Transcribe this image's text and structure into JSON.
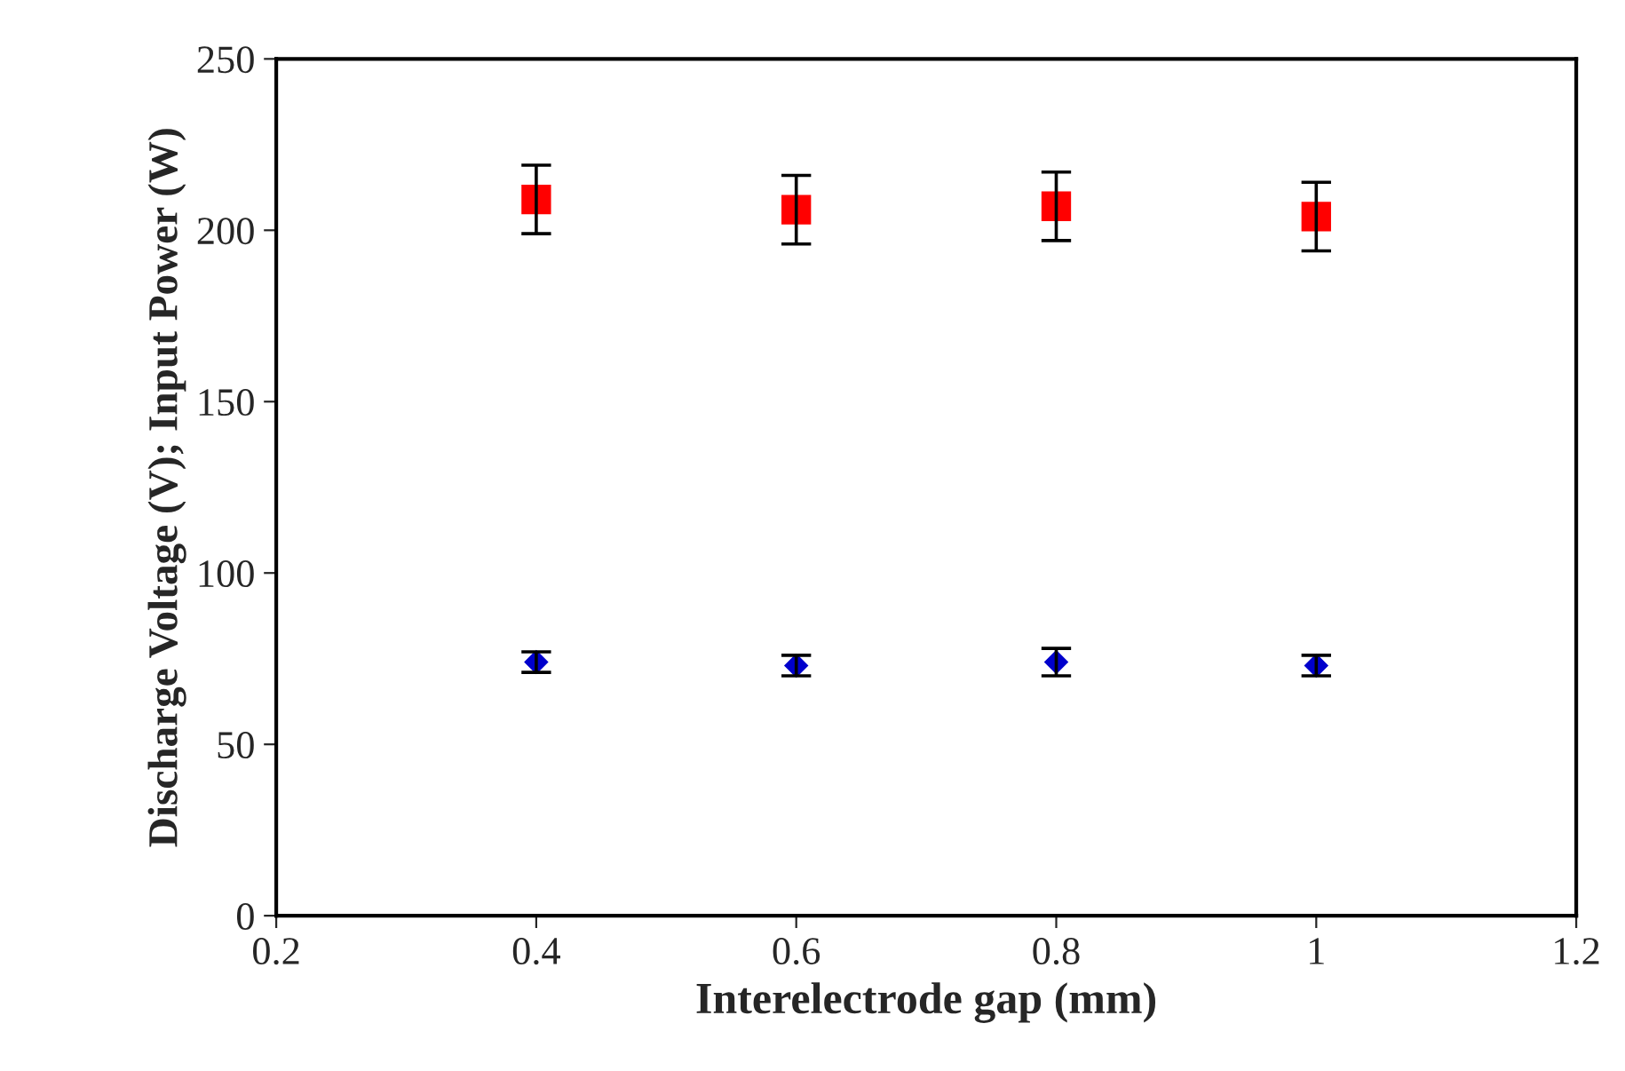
{
  "chart_data": {
    "type": "scatter",
    "xlabel": "Interelectrode gap (mm)",
    "ylabel": "Discharge Voltage (V); Input Power (W)",
    "x": [
      0.4,
      0.6,
      0.8,
      1
    ],
    "series": [
      {
        "color": "#ff0000",
        "marker": "square",
        "values": [
          209,
          206,
          207,
          204
        ],
        "errors": [
          10,
          10,
          10,
          10
        ]
      },
      {
        "color": "#0000cc",
        "marker": "diamond",
        "values": [
          74,
          73,
          74,
          73
        ],
        "errors": [
          3,
          3,
          4,
          3
        ]
      }
    ],
    "xlim": [
      0.2,
      1.2
    ],
    "xticks": [
      0.2,
      0.4,
      0.6,
      0.8,
      1,
      1.2
    ],
    "ylim": [
      0,
      250
    ],
    "yticks": [
      0,
      50,
      100,
      150,
      200,
      250
    ],
    "grid": false,
    "legend": false
  }
}
